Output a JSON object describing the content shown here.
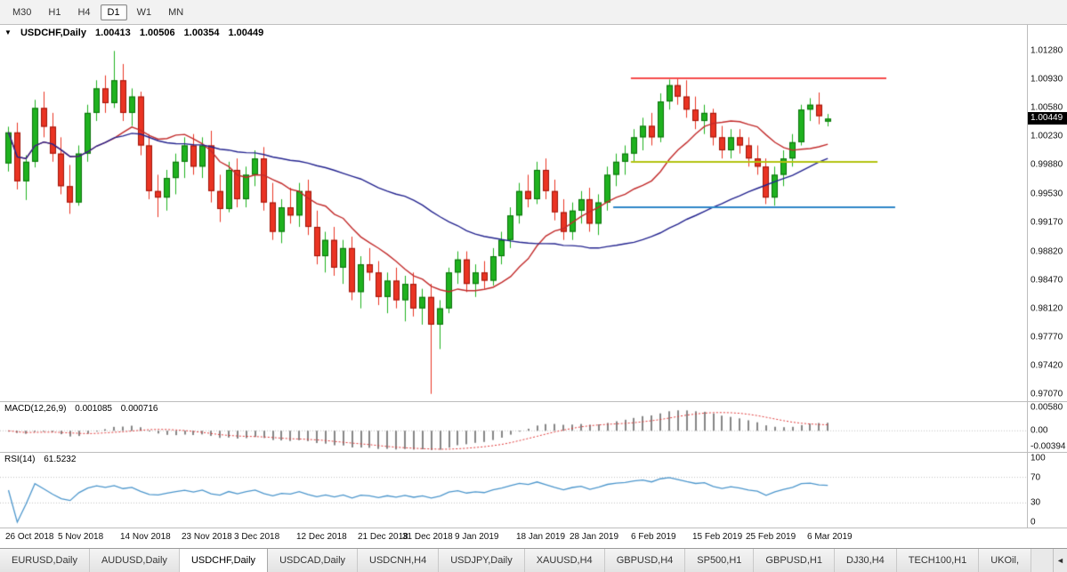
{
  "toolbar": {
    "timeframes": [
      {
        "label": "M30",
        "active": false
      },
      {
        "label": "H1",
        "active": false
      },
      {
        "label": "H4",
        "active": false
      },
      {
        "label": "D1",
        "active": true
      },
      {
        "label": "W1",
        "active": false
      },
      {
        "label": "MN",
        "active": false
      }
    ]
  },
  "chart": {
    "header": {
      "icon": "▼",
      "symbol": "USDCHF,Daily",
      "open": "1.00413",
      "high": "1.00506",
      "low": "1.00354",
      "close": "1.00449"
    },
    "current_price_label": "1.00449",
    "price_ticks": [
      "1.01280",
      "1.00930",
      "1.00580",
      "1.00230",
      "0.99880",
      "0.99530",
      "0.99170",
      "0.98820",
      "0.98470",
      "0.98120",
      "0.97770",
      "0.97420",
      "0.97070"
    ]
  },
  "macd": {
    "name": "MACD(12,26,9)",
    "value_main": "0.001085",
    "value_signal": "0.000716",
    "ticks": [
      "0.00580",
      "0.00",
      "-0.00394"
    ]
  },
  "rsi": {
    "name": "RSI(14)",
    "value": "61.5232",
    "ticks": [
      "100",
      "70",
      "30",
      "0"
    ]
  },
  "time_axis": [
    {
      "index": 0,
      "label": "26 Oct 2018"
    },
    {
      "index": 6,
      "label": "5 Nov 2018"
    },
    {
      "index": 13,
      "label": "14 Nov 2018"
    },
    {
      "index": 20,
      "label": "23 Nov 2018"
    },
    {
      "index": 26,
      "label": "3 Dec 2018"
    },
    {
      "index": 33,
      "label": "12 Dec 2018"
    },
    {
      "index": 40,
      "label": "21 Dec 2018"
    },
    {
      "index": 45,
      "label": "31 Dec 2018"
    },
    {
      "index": 51,
      "label": "9 Jan 2019"
    },
    {
      "index": 58,
      "label": "18 Jan 2019"
    },
    {
      "index": 64,
      "label": "28 Jan 2019"
    },
    {
      "index": 71,
      "label": "6 Feb 2019"
    },
    {
      "index": 78,
      "label": "15 Feb 2019"
    },
    {
      "index": 84,
      "label": "25 Feb 2019"
    },
    {
      "index": 91,
      "label": "6 Mar 2019"
    }
  ],
  "tabs": {
    "items": [
      {
        "label": "EURUSD,Daily",
        "active": false
      },
      {
        "label": "AUDUSD,Daily",
        "active": false
      },
      {
        "label": "USDCHF,Daily",
        "active": true
      },
      {
        "label": "USDCAD,Daily",
        "active": false
      },
      {
        "label": "USDCNH,H4",
        "active": false
      },
      {
        "label": "USDJPY,Daily",
        "active": false
      },
      {
        "label": "XAUUSD,H4",
        "active": false
      },
      {
        "label": "GBPUSD,H4",
        "active": false
      },
      {
        "label": "SP500,H1",
        "active": false
      },
      {
        "label": "GBPUSD,H1",
        "active": false
      },
      {
        "label": "DJ30,H4",
        "active": false
      },
      {
        "label": "TECH100,H1",
        "active": false
      },
      {
        "label": "UKOil,",
        "active": false
      }
    ],
    "scroll_left_icon": "◄"
  },
  "chart_data": {
    "type": "candlestick",
    "symbol": "USDCHF",
    "timeframe": "Daily",
    "y_range": [
      0.9698,
      1.016
    ],
    "current_price": 1.00449,
    "candle_colors": {
      "bull_fill": "#1FB21F",
      "bull_border": "#0A700A",
      "bear_fill": "#EA3423",
      "bear_border": "#9E1408"
    },
    "moving_averages": [
      {
        "name": "fast-ma",
        "period": 12,
        "color": "#C22B2B"
      },
      {
        "name": "slow-ma",
        "period": 38,
        "color": "#24248F"
      }
    ],
    "horizontal_lines": [
      {
        "name": "resistance-line",
        "price": 1.0095,
        "from_index": 71,
        "to_index": 100,
        "color": "#F64C4C",
        "width": 2
      },
      {
        "name": "mid-support-line",
        "price": 0.9992,
        "from_index": 71,
        "to_index": 99,
        "color": "#B3C211",
        "width": 2
      },
      {
        "name": "lower-support-line",
        "price": 0.9936,
        "from_index": 69,
        "to_index": 101,
        "color": "#2E86C8",
        "width": 2
      }
    ],
    "macd": {
      "fast": 12,
      "slow": 26,
      "signal": 9,
      "hist_color": "#5F5F5F",
      "signal_color": "#E03A3A"
    },
    "rsi": {
      "period": 14,
      "color": "#4C96CC",
      "levels": [
        70,
        30
      ]
    },
    "candles_ohlc": [
      [
        0.999,
        1.0035,
        0.998,
        1.0028
      ],
      [
        1.0028,
        1.004,
        0.9958,
        0.9968
      ],
      [
        0.9968,
        1.0,
        0.9945,
        0.9992
      ],
      [
        0.9992,
        1.0068,
        0.9985,
        1.0058
      ],
      [
        1.0058,
        1.0078,
        1.0022,
        1.0035
      ],
      [
        1.0035,
        1.0052,
        0.9992,
        1.0002
      ],
      [
        1.0002,
        1.0022,
        0.9952,
        0.9962
      ],
      [
        0.9962,
        0.9988,
        0.9928,
        0.9942
      ],
      [
        0.9942,
        1.0012,
        0.9938,
        1.0002
      ],
      [
        1.0002,
        1.0062,
        0.9992,
        1.0052
      ],
      [
        1.0052,
        1.0092,
        1.0042,
        1.0082
      ],
      [
        1.0082,
        1.0098,
        1.0052,
        1.0064
      ],
      [
        1.0064,
        1.0128,
        1.0058,
        1.0092
      ],
      [
        1.0092,
        1.0112,
        1.0042,
        1.0052
      ],
      [
        1.0052,
        1.0082,
        1.0036,
        1.0072
      ],
      [
        1.0072,
        1.0078,
        1.0,
        1.0012
      ],
      [
        1.0012,
        1.0026,
        0.9946,
        0.9956
      ],
      [
        0.9956,
        0.9976,
        0.9924,
        0.9948
      ],
      [
        0.9948,
        0.9982,
        0.9932,
        0.9972
      ],
      [
        0.9972,
        1.0002,
        0.9952,
        0.9992
      ],
      [
        0.9992,
        1.0022,
        0.9972,
        1.0012
      ],
      [
        1.0012,
        1.0026,
        0.9976,
        0.9986
      ],
      [
        0.9986,
        1.0022,
        0.9972,
        1.0012
      ],
      [
        1.0012,
        1.003,
        0.9942,
        0.9956
      ],
      [
        0.9956,
        0.9976,
        0.9918,
        0.9934
      ],
      [
        0.9934,
        0.9992,
        0.993,
        0.9982
      ],
      [
        0.9982,
        0.9996,
        0.9936,
        0.9946
      ],
      [
        0.9946,
        0.9986,
        0.9936,
        0.9976
      ],
      [
        0.9976,
        1.0006,
        0.9962,
        0.9996
      ],
      [
        0.9996,
        1.001,
        0.9932,
        0.9942
      ],
      [
        0.9942,
        0.9966,
        0.9896,
        0.9906
      ],
      [
        0.9906,
        0.9946,
        0.9892,
        0.9936
      ],
      [
        0.9936,
        0.996,
        0.9916,
        0.9926
      ],
      [
        0.9926,
        0.9966,
        0.9912,
        0.9956
      ],
      [
        0.9956,
        0.997,
        0.9902,
        0.9912
      ],
      [
        0.9912,
        0.9932,
        0.9866,
        0.9876
      ],
      [
        0.9876,
        0.9906,
        0.9856,
        0.9896
      ],
      [
        0.9896,
        0.9912,
        0.9852,
        0.9862
      ],
      [
        0.9862,
        0.9896,
        0.9842,
        0.9886
      ],
      [
        0.9886,
        0.99,
        0.9822,
        0.9832
      ],
      [
        0.9832,
        0.9876,
        0.9812,
        0.9866
      ],
      [
        0.9866,
        0.9886,
        0.9846,
        0.9856
      ],
      [
        0.9856,
        0.987,
        0.9816,
        0.9826
      ],
      [
        0.9826,
        0.9856,
        0.9806,
        0.9846
      ],
      [
        0.9846,
        0.9862,
        0.9812,
        0.9822
      ],
      [
        0.9822,
        0.9852,
        0.9796,
        0.9842
      ],
      [
        0.9842,
        0.9856,
        0.9802,
        0.9812
      ],
      [
        0.9812,
        0.9836,
        0.9792,
        0.9826
      ],
      [
        0.9826,
        0.9842,
        0.9707,
        0.9792
      ],
      [
        0.9792,
        0.9822,
        0.9762,
        0.9812
      ],
      [
        0.9812,
        0.9862,
        0.9806,
        0.9856
      ],
      [
        0.9856,
        0.9882,
        0.9842,
        0.9872
      ],
      [
        0.9872,
        0.9882,
        0.9832,
        0.9842
      ],
      [
        0.9842,
        0.9866,
        0.9826,
        0.9856
      ],
      [
        0.9856,
        0.987,
        0.9836,
        0.9846
      ],
      [
        0.9846,
        0.9886,
        0.984,
        0.9876
      ],
      [
        0.9876,
        0.9906,
        0.9866,
        0.9896
      ],
      [
        0.9896,
        0.9936,
        0.9886,
        0.9926
      ],
      [
        0.9926,
        0.9966,
        0.9916,
        0.9956
      ],
      [
        0.9956,
        0.9976,
        0.9936,
        0.9946
      ],
      [
        0.9946,
        0.9992,
        0.994,
        0.9982
      ],
      [
        0.9982,
        0.9996,
        0.9946,
        0.9956
      ],
      [
        0.9956,
        0.997,
        0.992,
        0.993
      ],
      [
        0.993,
        0.9946,
        0.9896,
        0.9906
      ],
      [
        0.9906,
        0.9942,
        0.9896,
        0.9932
      ],
      [
        0.9932,
        0.9956,
        0.9916,
        0.9946
      ],
      [
        0.9946,
        0.996,
        0.9906,
        0.9916
      ],
      [
        0.9916,
        0.9952,
        0.9902,
        0.9942
      ],
      [
        0.9942,
        0.9986,
        0.9932,
        0.9976
      ],
      [
        0.9976,
        1.0002,
        0.9962,
        0.9992
      ],
      [
        0.9992,
        1.0012,
        0.9976,
        1.0002
      ],
      [
        1.0002,
        1.0032,
        0.9992,
        1.0022
      ],
      [
        1.0022,
        1.0046,
        1.0006,
        1.0036
      ],
      [
        1.0036,
        1.0052,
        1.0012,
        1.0022
      ],
      [
        1.0022,
        1.0076,
        1.0016,
        1.0066
      ],
      [
        1.0066,
        1.0093,
        1.0056,
        1.0086
      ],
      [
        1.0086,
        1.0095,
        1.0062,
        1.0072
      ],
      [
        1.0072,
        1.0092,
        1.0046,
        1.0056
      ],
      [
        1.0056,
        1.0072,
        1.0032,
        1.0042
      ],
      [
        1.0042,
        1.0062,
        1.0026,
        1.0052
      ],
      [
        1.0052,
        1.0057,
        1.0012,
        1.0022
      ],
      [
        1.0022,
        1.0036,
        0.9996,
        1.0006
      ],
      [
        1.0006,
        1.0032,
        0.9996,
        1.0022
      ],
      [
        1.0022,
        1.0032,
        1.0002,
        1.0012
      ],
      [
        1.0012,
        1.0022,
        0.9986,
        0.9996
      ],
      [
        0.9996,
        1.0012,
        0.9976,
        0.9986
      ],
      [
        0.9986,
        0.9996,
        0.994,
        0.9948
      ],
      [
        0.9948,
        0.9986,
        0.9938,
        0.9976
      ],
      [
        0.9976,
        1.0006,
        0.9962,
        0.9996
      ],
      [
        0.9996,
        1.0026,
        0.9986,
        1.0016
      ],
      [
        1.0016,
        1.0062,
        1.0012,
        1.0056
      ],
      [
        1.0056,
        1.007,
        1.0042,
        1.0062
      ],
      [
        1.0062,
        1.0077,
        1.0038,
        1.0048
      ],
      [
        1.00413,
        1.00506,
        1.00354,
        1.00449
      ]
    ]
  }
}
